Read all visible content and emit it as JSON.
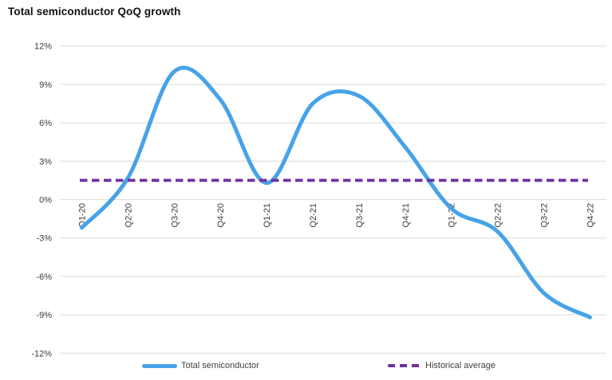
{
  "title": "Total semiconductor QoQ growth",
  "chart_data": {
    "type": "line",
    "title": "Total semiconductor QoQ growth",
    "categories": [
      "Q1-20",
      "Q2-20",
      "Q3-20",
      "Q4-20",
      "Q1-21",
      "Q2-21",
      "Q3-21",
      "Q4-21",
      "Q1-22",
      "Q2-22",
      "Q3-22",
      "Q4-22"
    ],
    "series": [
      {
        "name": "Total semiconductor",
        "type": "smooth-line",
        "color": "#47A3E8",
        "values": [
          -2.2,
          1.7,
          10.0,
          7.8,
          1.3,
          7.5,
          8.1,
          4.1,
          -0.7,
          -2.5,
          -7.3,
          -9.2
        ]
      },
      {
        "name": "Historical average",
        "type": "dashed-constant-line",
        "color": "#7030A0",
        "value": 1.5
      }
    ],
    "unit": "%",
    "ylim": [
      -12,
      12
    ],
    "ytick_step": 3,
    "ytick_labels": [
      "12%",
      "9%",
      "6%",
      "3%",
      "0%",
      "-3%",
      "-6%",
      "-9%",
      "-12%"
    ],
    "xlabel": "",
    "ylabel": "",
    "grid": true,
    "x_label_rotation_deg": -90,
    "legend_position": "bottom"
  },
  "colors": {
    "series_line": "#47A3E8",
    "average_line": "#7030A0",
    "gridline": "#E0E0E0",
    "axis_text": "#3B3B3B",
    "title_text": "#111111",
    "background": "#FFFFFF"
  }
}
